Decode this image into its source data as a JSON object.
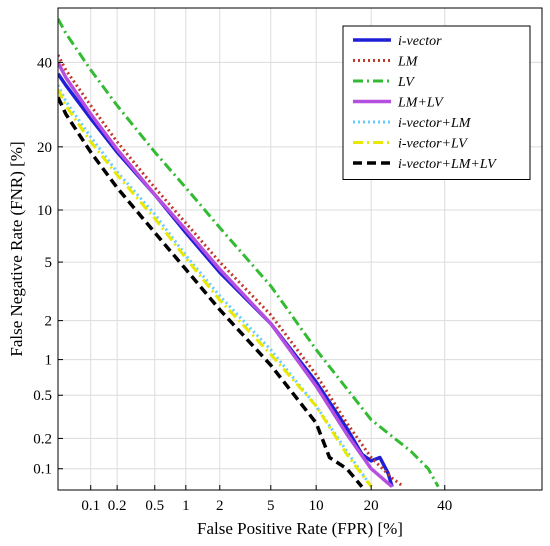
{
  "chart_data": {
    "type": "line",
    "xlabel": "False Positive Rate (FPR) [%]",
    "ylabel": "False Negative Rate (FNR) [%]",
    "xscale": "probit",
    "yscale": "probit",
    "xlim": [
      0.04,
      70
    ],
    "ylim": [
      0.06,
      55
    ],
    "xticks": [
      0.1,
      0.2,
      0.5,
      1,
      2,
      5,
      10,
      20,
      40
    ],
    "xtick_labels": [
      "0.1",
      "0.2",
      "0.5",
      "1",
      "2",
      "5",
      "10",
      "20",
      "40"
    ],
    "yticks": [
      0.1,
      0.2,
      0.5,
      1,
      2,
      5,
      10,
      20,
      40
    ],
    "ytick_labels": [
      "0.1",
      "0.2",
      "0.5",
      "1",
      "2",
      "5",
      "10",
      "20",
      "40"
    ],
    "grid": true,
    "legend_position": "top-right",
    "series": [
      {
        "name": "i-vector",
        "color": "#1f1fd6",
        "style": "solid",
        "x": [
          0.04,
          0.05,
          0.1,
          0.2,
          0.5,
          1,
          2,
          5,
          10,
          15,
          18,
          20,
          22,
          24,
          25
        ],
        "y": [
          37,
          34,
          26,
          19,
          12,
          7.5,
          4.3,
          1.9,
          0.65,
          0.25,
          0.14,
          0.12,
          0.13,
          0.09,
          0.065
        ]
      },
      {
        "name": "LM",
        "color": "#c0392b",
        "style": "dotted",
        "x": [
          0.04,
          0.05,
          0.1,
          0.2,
          0.5,
          1,
          2,
          5,
          10,
          15,
          20,
          25,
          28
        ],
        "y": [
          42,
          38,
          29,
          21,
          13,
          8.5,
          5,
          2.2,
          0.75,
          0.28,
          0.13,
          0.08,
          0.065
        ]
      },
      {
        "name": "LV",
        "color": "#33bb33",
        "style": "dashdot",
        "x": [
          0.04,
          0.05,
          0.1,
          0.2,
          0.5,
          1,
          2,
          5,
          10,
          20,
          30,
          35,
          38
        ],
        "y": [
          52,
          48,
          38,
          29,
          19,
          13,
          8,
          3.5,
          1.2,
          0.3,
          0.15,
          0.1,
          0.065
        ]
      },
      {
        "name": "LM+LV",
        "color": "#b44fe0",
        "style": "solid",
        "x": [
          0.04,
          0.05,
          0.1,
          0.2,
          0.5,
          1,
          2,
          5,
          10,
          15,
          20,
          25
        ],
        "y": [
          40,
          36,
          27,
          19.5,
          12,
          7.8,
          4.5,
          1.9,
          0.6,
          0.22,
          0.1,
          0.065
        ]
      },
      {
        "name": "i-vector+LM",
        "color": "#66ccff",
        "style": "dotted",
        "x": [
          0.04,
          0.05,
          0.1,
          0.2,
          0.5,
          1,
          2,
          5,
          10,
          15,
          20
        ],
        "y": [
          34,
          30,
          22,
          15.5,
          9.5,
          5.5,
          3,
          1.2,
          0.4,
          0.15,
          0.065
        ]
      },
      {
        "name": "i-vector+LV",
        "color": "#e8e800",
        "style": "dashdot",
        "x": [
          0.04,
          0.05,
          0.1,
          0.2,
          0.5,
          1,
          2,
          5,
          10,
          15,
          20
        ],
        "y": [
          33,
          29,
          21,
          15,
          9,
          5.3,
          2.8,
          1.1,
          0.4,
          0.14,
          0.065
        ]
      },
      {
        "name": "i-vector+LM+LV",
        "color": "#000000",
        "style": "dashed",
        "x": [
          0.04,
          0.05,
          0.1,
          0.2,
          0.5,
          1,
          2,
          5,
          10,
          12,
          15,
          18
        ],
        "y": [
          31,
          27,
          19,
          13,
          7.5,
          4.5,
          2.4,
          0.9,
          0.28,
          0.13,
          0.1,
          0.065
        ]
      }
    ]
  }
}
